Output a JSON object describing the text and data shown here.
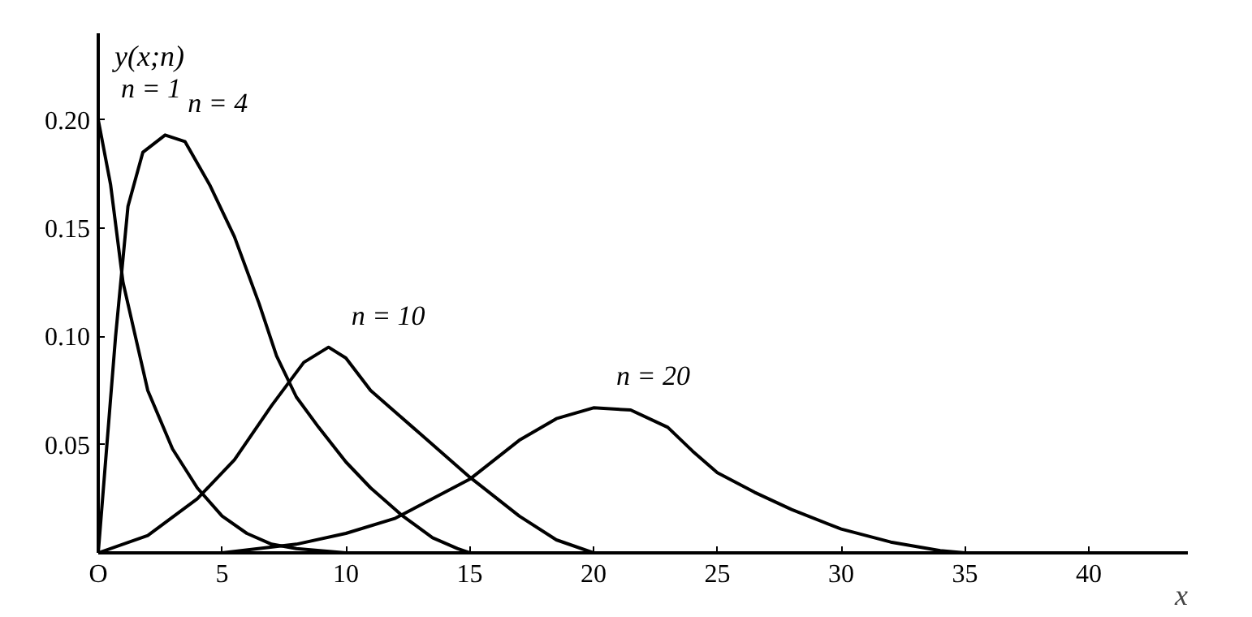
{
  "chart_data": {
    "type": "line",
    "xlabel": "x",
    "ylabel": "y(x;n)",
    "xlim": [
      0,
      44
    ],
    "ylim": [
      0,
      0.24
    ],
    "xticks": [
      {
        "value": 0,
        "label": "O"
      },
      5,
      10,
      15,
      20,
      25,
      30,
      35,
      40
    ],
    "yticks": [
      {
        "value": 0.05,
        "label": "0.05"
      },
      {
        "value": 0.1,
        "label": "0.10"
      },
      {
        "value": 0.15,
        "label": "0.15"
      },
      {
        "value": 0.2,
        "label": "0.20"
      }
    ],
    "grid": false,
    "legend": false,
    "marker": "none",
    "line_style": "solid",
    "series": [
      {
        "name": "n = 1",
        "color": "#000000",
        "x": [
          0,
          0.5,
          1,
          1.5,
          2,
          3,
          4,
          5,
          6,
          7,
          8,
          10
        ],
        "values": [
          0.2,
          0.17,
          0.125,
          0.1,
          0.075,
          0.048,
          0.03,
          0.017,
          0.009,
          0.004,
          0.002,
          0
        ]
      },
      {
        "name": "n = 4",
        "color": "#000000",
        "x": [
          0,
          0.7,
          1.2,
          1.8,
          2.7,
          3.5,
          4.5,
          5.5,
          6.5,
          7.2,
          8,
          8.9,
          10,
          11,
          12.3,
          13.5,
          14.5,
          15
        ],
        "values": [
          0,
          0.1,
          0.16,
          0.185,
          0.193,
          0.19,
          0.17,
          0.146,
          0.115,
          0.091,
          0.072,
          0.058,
          0.042,
          0.03,
          0.017,
          0.007,
          0.002,
          0
        ]
      },
      {
        "name": "n = 10",
        "color": "#000000",
        "x": [
          0,
          2,
          4,
          5.5,
          7,
          8.3,
          9.3,
          10,
          11,
          13,
          15,
          17,
          18.5,
          20
        ],
        "values": [
          0,
          0.008,
          0.025,
          0.043,
          0.068,
          0.088,
          0.095,
          0.09,
          0.075,
          0.055,
          0.035,
          0.017,
          0.006,
          0
        ]
      },
      {
        "name": "n = 20",
        "color": "#000000",
        "x": [
          5,
          8,
          10,
          12,
          15,
          17,
          18.5,
          20,
          21.5,
          23,
          24,
          25,
          26.5,
          28,
          30,
          32,
          34,
          35
        ],
        "values": [
          0,
          0.004,
          0.009,
          0.016,
          0.034,
          0.052,
          0.062,
          0.067,
          0.066,
          0.058,
          0.047,
          0.037,
          0.028,
          0.02,
          0.011,
          0.005,
          0.001,
          0
        ]
      }
    ]
  }
}
